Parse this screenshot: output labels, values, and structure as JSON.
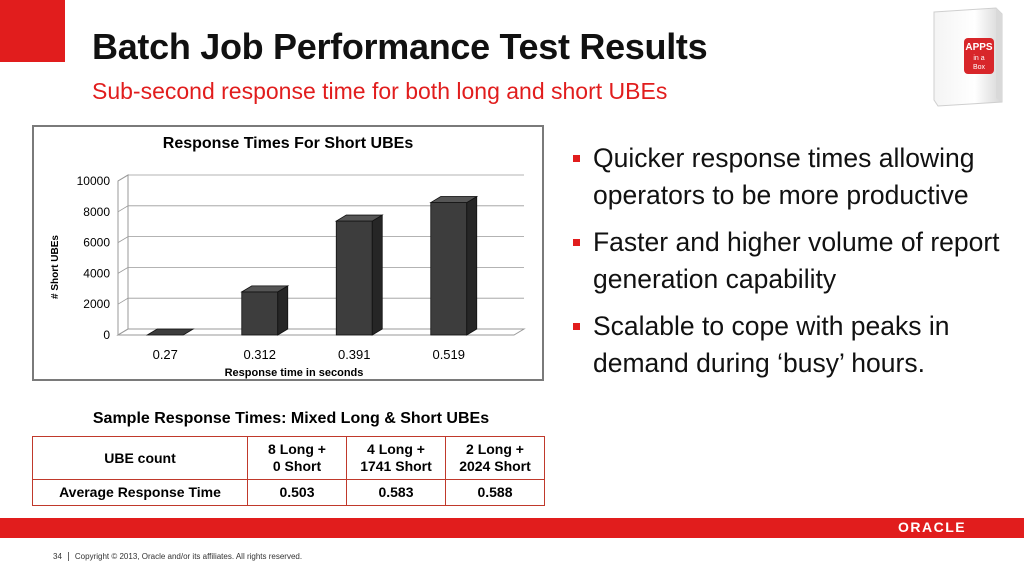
{
  "slide": {
    "title": "Batch Job Performance Test Results",
    "subtitle": "Sub-second response time for both long and short UBEs",
    "page_number": "34",
    "copyright": "Copyright © 2013, Oracle and/or its affiliates. All rights reserved.",
    "brand": "ORACLE",
    "accent_color": "#e11d1d"
  },
  "badge": {
    "line1": "APPS",
    "line2": "in a",
    "line3": "Box"
  },
  "chart_data": {
    "type": "bar",
    "title": "Response Times For Short UBEs",
    "xlabel": "Response time in seconds",
    "ylabel": "# Short UBEs",
    "categories": [
      "0.27",
      "0.312",
      "0.391",
      "0.519"
    ],
    "values": [
      0,
      2800,
      7400,
      8600
    ],
    "ylim": [
      0,
      10000
    ],
    "yticks": [
      0,
      2000,
      4000,
      6000,
      8000,
      10000
    ],
    "grid": true,
    "legend": "none",
    "bar_color": "#3d3d3d"
  },
  "bullets": [
    "Quicker response times allowing operators to be more productive",
    "Faster and higher volume of report generation capability",
    "Scalable to cope with peaks in demand during ‘busy’ hours."
  ],
  "table": {
    "title": "Sample Response Times: Mixed Long & Short UBEs",
    "header": [
      "UBE count",
      "8 Long +",
      "0 Short",
      "4 Long +",
      "1741 Short",
      "2 Long +",
      "2024 Short"
    ],
    "row_label": "Average Response Time",
    "values": [
      "0.503",
      "0.583",
      "0.588"
    ]
  }
}
